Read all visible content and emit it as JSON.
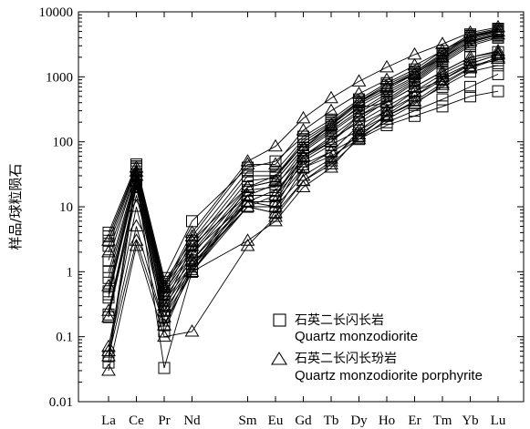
{
  "chart_data": {
    "type": "line",
    "title": "",
    "xlabel": "",
    "ylabel": "样品/球粒陨石",
    "y_scale": "log",
    "ylim": [
      0.01,
      10000
    ],
    "y_ticks": [
      "0.01",
      "0.1",
      "1",
      "10",
      "100",
      "1000",
      "10000"
    ],
    "categories": [
      "La",
      "Ce",
      "Pr",
      "Nd",
      "Sm",
      "Eu",
      "Gd",
      "Tb",
      "Dy",
      "Ho",
      "Er",
      "Tm",
      "Yb",
      "Lu"
    ],
    "x": [
      1,
      2,
      3,
      4,
      6,
      7,
      8,
      9,
      10,
      11,
      12,
      13,
      14,
      15
    ],
    "grid": false,
    "legend": {
      "position": "bottom-right",
      "entries": [
        {
          "marker": "square",
          "cn": "石英二长闪长岩",
          "en": "Quartz monzodiorite"
        },
        {
          "marker": "triangle",
          "cn": "石英二长闪长玢岩",
          "en": "Quartz monzodiorite porphyrite"
        }
      ]
    },
    "series": [
      {
        "marker": "square",
        "values": [
          4,
          45,
          0.8,
          6,
          40,
          50,
          120,
          220,
          450,
          800,
          1300,
          2500,
          4500,
          5500
        ]
      },
      {
        "marker": "square",
        "values": [
          3.5,
          42,
          0.7,
          3,
          35,
          35,
          110,
          200,
          420,
          750,
          1200,
          2300,
          4300,
          5300
        ]
      },
      {
        "marker": "square",
        "values": [
          3,
          40,
          0.65,
          2.5,
          30,
          30,
          100,
          190,
          400,
          700,
          1150,
          2200,
          4200,
          5200
        ]
      },
      {
        "marker": "square",
        "values": [
          2.5,
          38,
          0.6,
          2.2,
          25,
          28,
          90,
          180,
          380,
          650,
          1100,
          2100,
          4000,
          5000
        ]
      },
      {
        "marker": "square",
        "values": [
          1.5,
          35,
          0.5,
          2,
          20,
          25,
          80,
          160,
          350,
          600,
          1000,
          2000,
          3800,
          4800
        ]
      },
      {
        "marker": "square",
        "values": [
          1,
          32,
          0.45,
          1.8,
          18,
          20,
          75,
          150,
          300,
          550,
          950,
          1900,
          3600,
          4600
        ]
      },
      {
        "marker": "square",
        "values": [
          0.8,
          30,
          0.4,
          1.5,
          15,
          15,
          70,
          140,
          280,
          500,
          900,
          1800,
          3400,
          4400
        ]
      },
      {
        "marker": "square",
        "values": [
          0.5,
          28,
          0.35,
          1.3,
          12,
          12,
          60,
          120,
          250,
          450,
          850,
          1700,
          3200,
          4200
        ]
      },
      {
        "marker": "square",
        "values": [
          0.45,
          26,
          0.3,
          1.2,
          10,
          10,
          55,
          100,
          220,
          420,
          800,
          1600,
          3000,
          4000
        ]
      },
      {
        "marker": "square",
        "values": [
          0.4,
          25,
          0.25,
          1.1,
          20,
          30,
          90,
          170,
          330,
          400,
          700,
          1200,
          2000,
          2400
        ]
      },
      {
        "marker": "square",
        "values": [
          0.22,
          22,
          0.2,
          1,
          15,
          22,
          60,
          110,
          200,
          350,
          600,
          900,
          1500,
          1800
        ]
      },
      {
        "marker": "square",
        "values": [
          0.2,
          20,
          0.15,
          1,
          12,
          18,
          50,
          90,
          150,
          250,
          400,
          700,
          1200,
          1500
        ]
      },
      {
        "marker": "square",
        "values": [
          0.05,
          30,
          0.12,
          1.2,
          10,
          15,
          45,
          70,
          120,
          200,
          300,
          450,
          700,
          1100
        ]
      },
      {
        "marker": "square",
        "values": [
          0.04,
          25,
          0.033,
          1,
          10,
          8,
          40,
          60,
          110,
          180,
          250,
          350,
          500,
          600
        ]
      },
      {
        "marker": "triangle",
        "values": [
          3,
          40,
          0.6,
          4,
          50,
          85,
          230,
          470,
          850,
          1400,
          2200,
          3200,
          4800,
          5800
        ]
      },
      {
        "marker": "triangle",
        "values": [
          2,
          35,
          0.55,
          3.5,
          45,
          45,
          150,
          300,
          550,
          900,
          1500,
          2500,
          4200,
          5000
        ]
      },
      {
        "marker": "triangle",
        "values": [
          0.6,
          30,
          0.45,
          3,
          20,
          25,
          80,
          180,
          420,
          700,
          1100,
          2000,
          3500,
          4500
        ]
      },
      {
        "marker": "triangle",
        "values": [
          0.25,
          20,
          0.3,
          2.5,
          15,
          15,
          60,
          100,
          250,
          400,
          700,
          1200,
          2000,
          2500
        ]
      },
      {
        "marker": "triangle",
        "values": [
          0.2,
          15,
          0.25,
          2,
          12,
          12,
          40,
          70,
          180,
          300,
          500,
          900,
          1600,
          2200
        ]
      },
      {
        "marker": "triangle",
        "values": [
          0.07,
          10,
          0.2,
          1.5,
          12,
          10,
          30,
          55,
          130,
          250,
          420,
          800,
          1400,
          2000
        ]
      },
      {
        "marker": "triangle",
        "values": [
          0.06,
          5,
          0.15,
          1.3,
          10,
          8,
          25,
          45,
          110,
          220,
          380,
          750,
          1350,
          1900
        ]
      },
      {
        "marker": "triangle",
        "values": [
          0.05,
          3,
          0.15,
          1,
          3,
          6,
          20,
          40,
          120,
          260,
          500,
          1000,
          1600,
          2200
        ]
      },
      {
        "marker": "triangle",
        "values": [
          0.03,
          2.5,
          0.1,
          0.12,
          2.5,
          7,
          25,
          50,
          150,
          300,
          600,
          1100,
          1800,
          2300
        ]
      }
    ]
  }
}
